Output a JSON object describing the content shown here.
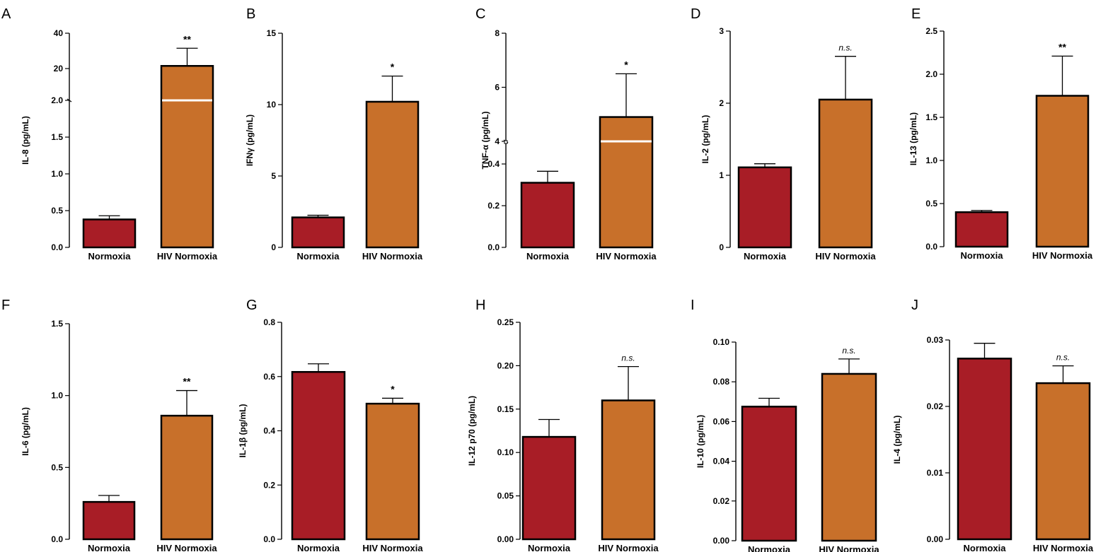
{
  "figure": {
    "colors": {
      "normoxia": "#a81d26",
      "hiv": "#c8702a"
    }
  },
  "chart_data": [
    {
      "panel": "A",
      "type": "bar",
      "ylabel": "IL-8 (pg/mL)",
      "categories": [
        "Normoxia",
        "HIV Normoxia"
      ],
      "values": [
        0.38,
        21.5
      ],
      "errors": [
        0.05,
        10
      ],
      "significance": "**",
      "yticks": [
        "0.0",
        "0.5",
        "1.0",
        "1.5",
        "2.0",
        "20",
        "40"
      ],
      "axis_break": {
        "lower_range": [
          0,
          2.0
        ],
        "upper_range": [
          2.0,
          40
        ]
      }
    },
    {
      "panel": "B",
      "type": "bar",
      "ylabel": "IFNγ (pg/mL)",
      "categories": [
        "Normoxia",
        "HIV Normoxia"
      ],
      "values": [
        2.1,
        10.2
      ],
      "errors": [
        0.15,
        1.8
      ],
      "significance": "*",
      "ylim": [
        0,
        15
      ],
      "yticks": [
        "0",
        "5",
        "10",
        "15"
      ]
    },
    {
      "panel": "C",
      "type": "bar",
      "ylabel": "TNF-α (pg/mL)",
      "categories": [
        "Normoxia",
        "HIV Normoxia"
      ],
      "values": [
        0.31,
        4.9
      ],
      "errors": [
        0.055,
        1.6
      ],
      "significance": "*",
      "yticks": [
        "0.0",
        "0.2",
        "0.4",
        "4",
        "6",
        "8"
      ],
      "axis_break": {
        "lower_range": [
          0,
          0.4
        ],
        "upper_range": [
          4,
          8
        ]
      }
    },
    {
      "panel": "D",
      "type": "bar",
      "ylabel": "IL-2 (pg/mL)",
      "categories": [
        "Normoxia",
        "HIV Normoxia"
      ],
      "values": [
        1.11,
        2.05
      ],
      "errors": [
        0.05,
        0.6
      ],
      "significance": "n.s.",
      "ylim": [
        0,
        3
      ],
      "yticks": [
        "0",
        "1",
        "2",
        "3"
      ]
    },
    {
      "panel": "E",
      "type": "bar",
      "ylabel": "IL-13 (pg/mL)",
      "categories": [
        "Normoxia",
        "HIV Normoxia"
      ],
      "values": [
        0.4,
        1.75
      ],
      "errors": [
        0.02,
        0.46
      ],
      "significance": "**",
      "ylim": [
        0,
        2.5
      ],
      "yticks": [
        "0.0",
        "0.5",
        "1.0",
        "1.5",
        "2.0",
        "2.5"
      ]
    },
    {
      "panel": "F",
      "type": "bar",
      "ylabel": "IL-6 (pg/mL)",
      "categories": [
        "Normoxia",
        "HIV Normoxia"
      ],
      "values": [
        0.26,
        0.86
      ],
      "errors": [
        0.045,
        0.175
      ],
      "significance": "**",
      "ylim": [
        0,
        1.5
      ],
      "yticks": [
        "0.0",
        "0.5",
        "1.0",
        "1.5"
      ]
    },
    {
      "panel": "G",
      "type": "bar",
      "ylabel": "IL-1β (pg/mL)",
      "categories": [
        "Normoxia",
        "HIV Normoxia"
      ],
      "values": [
        0.617,
        0.5
      ],
      "errors": [
        0.03,
        0.02
      ],
      "significance": "*",
      "ylim": [
        0,
        0.8
      ],
      "yticks": [
        "0.0",
        "0.2",
        "0.4",
        "0.6",
        "0.8"
      ]
    },
    {
      "panel": "H",
      "type": "bar",
      "ylabel": "IL-12 p70 (pg/mL)",
      "categories": [
        "Normoxia",
        "HIV Normoxia"
      ],
      "values": [
        0.118,
        0.16
      ],
      "errors": [
        0.02,
        0.039
      ],
      "significance": "n.s.",
      "ylim": [
        0,
        0.25
      ],
      "yticks": [
        "0.00",
        "0.05",
        "0.10",
        "0.15",
        "0.20",
        "0.25"
      ]
    },
    {
      "panel": "I",
      "type": "bar",
      "ylabel": "IL-10 (pg/mL)",
      "categories": [
        "Normoxia",
        "HIV Normoxia"
      ],
      "values": [
        0.0675,
        0.084
      ],
      "errors": [
        0.0042,
        0.0075
      ],
      "significance": "n.s.",
      "ylim": [
        0,
        0.1
      ],
      "yticks": [
        "0.00",
        "0.02",
        "0.04",
        "0.06",
        "0.08",
        "0.10"
      ]
    },
    {
      "panel": "J",
      "type": "bar",
      "ylabel": "IL-4 (pg/mL)",
      "categories": [
        "Normoxia",
        "HIV Normoxia"
      ],
      "values": [
        0.0272,
        0.0235
      ],
      "errors": [
        0.0023,
        0.0026
      ],
      "significance": "n.s.",
      "ylim": [
        0,
        0.03
      ],
      "yticks": [
        "0.00",
        "0.01",
        "0.02",
        "0.03"
      ]
    }
  ]
}
